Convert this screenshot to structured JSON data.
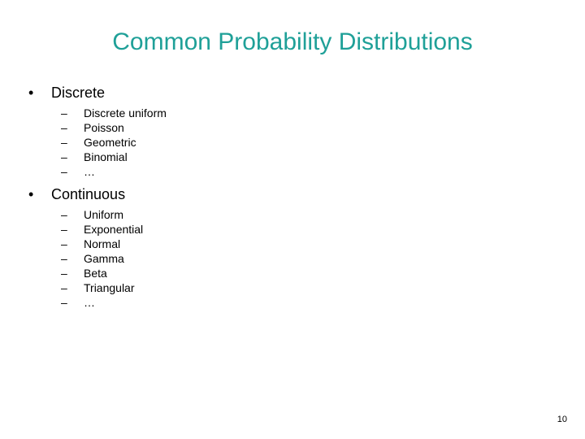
{
  "title": {
    "text": "Common Probability Distributions",
    "color": "#1fa098",
    "fontsize": 30
  },
  "text_color": "#000000",
  "background_color": "#ffffff",
  "sections": [
    {
      "label": "Discrete",
      "items": [
        "Discrete uniform",
        "Poisson",
        "Geometric",
        "Binomial",
        "…"
      ]
    },
    {
      "label": "Continuous",
      "items": [
        "Uniform",
        "Exponential",
        "Normal",
        "Gamma",
        "Beta",
        "Triangular",
        "…"
      ]
    }
  ],
  "bullets": {
    "level1": "•",
    "level2": "–"
  },
  "page_number": "10"
}
